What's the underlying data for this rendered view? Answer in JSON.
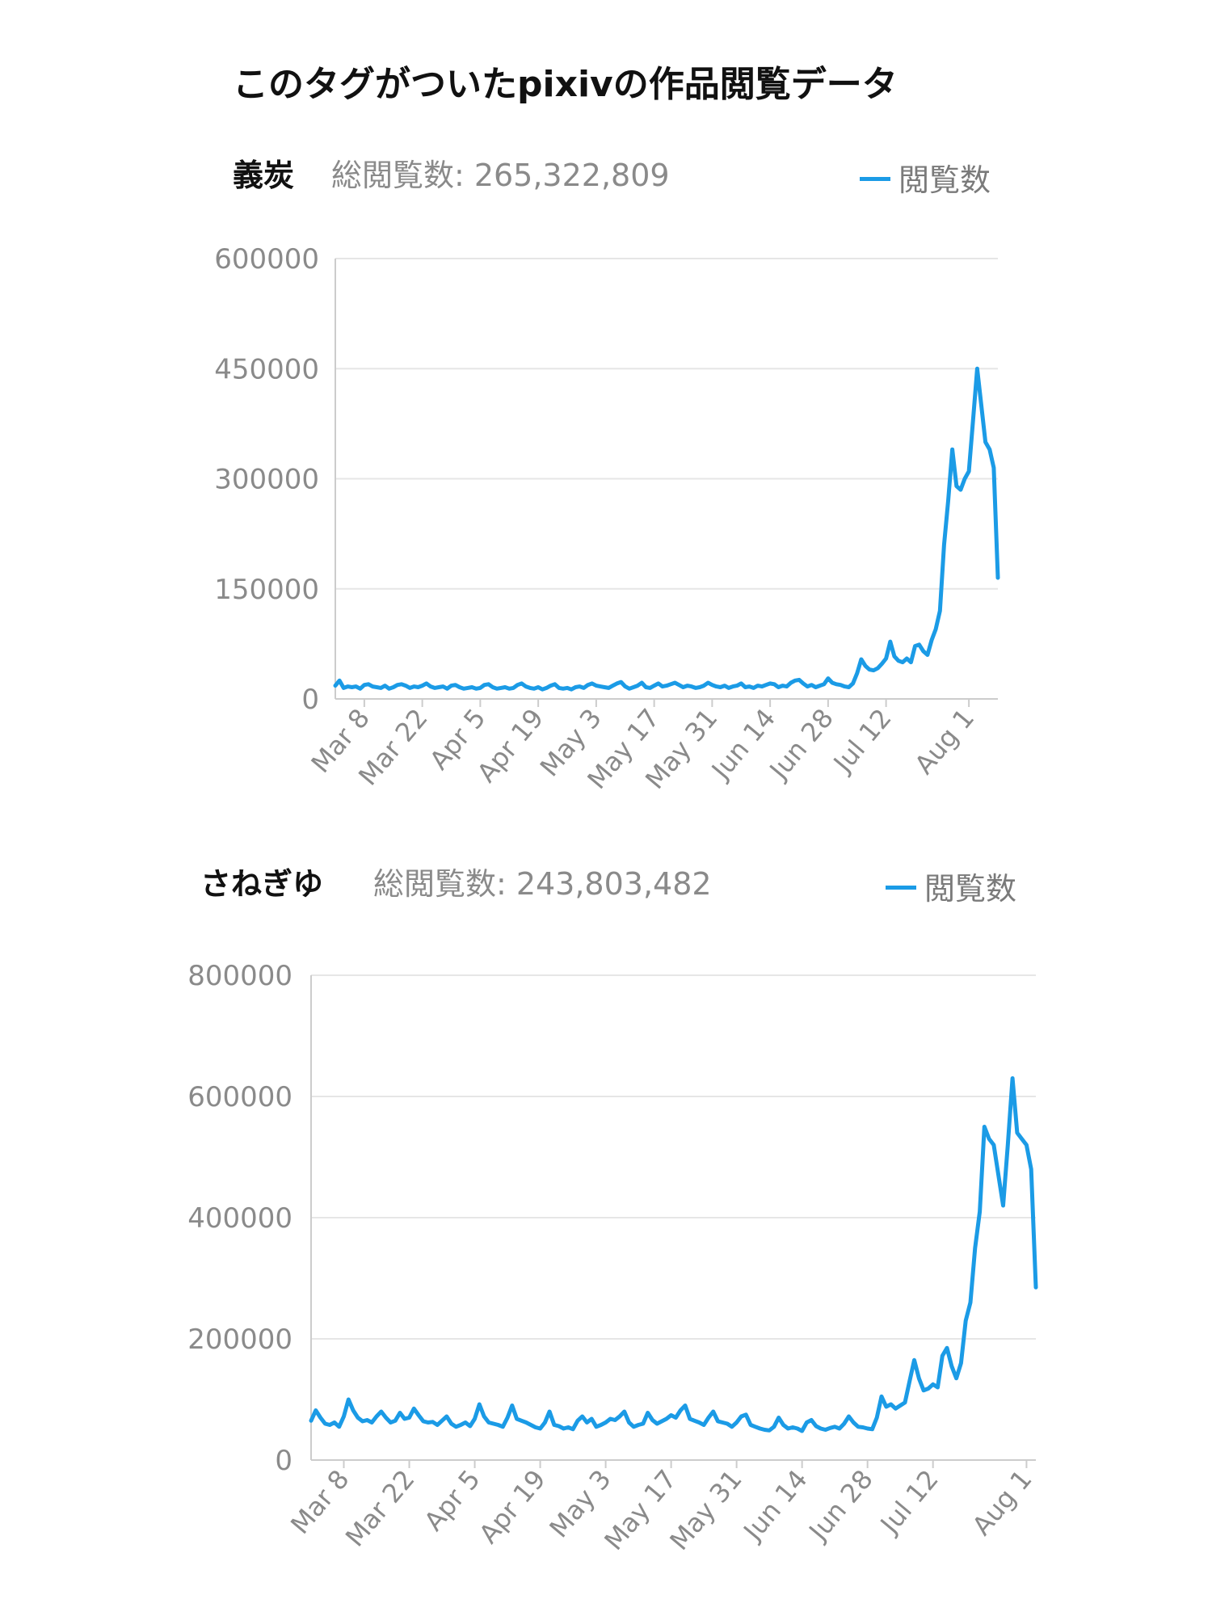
{
  "page_title": "このタグがついたpixivの作品閲覧データ",
  "colors": {
    "series": "#1b9be6",
    "grid": "#e6e6e6",
    "axis": "#cccccc",
    "text": "#8a8a8a"
  },
  "chart_data": [
    {
      "type": "line",
      "tag": "義炭",
      "total_label": "総閲覧数:",
      "total_value": "265,322,809",
      "legend_label": "閲覧数",
      "series_name": "閲覧数",
      "ylim": [
        0,
        600000
      ],
      "y_ticks": [
        "600000",
        "450000",
        "300000",
        "150000",
        "0"
      ],
      "y_tick_values": [
        600000,
        450000,
        300000,
        150000,
        0
      ],
      "x_ticks": [
        "Mar 8",
        "Mar 22",
        "Apr 5",
        "Apr 19",
        "May 3",
        "May 17",
        "May 31",
        "Jun 14",
        "Jun 28",
        "Jul 12",
        "Aug 1"
      ],
      "x_tick_index": [
        7,
        21,
        35,
        49,
        63,
        77,
        91,
        105,
        119,
        133,
        153
      ],
      "values": [
        18000,
        25000,
        15000,
        17000,
        16000,
        17000,
        14000,
        19000,
        20000,
        17000,
        16000,
        15000,
        18000,
        14000,
        16000,
        19000,
        20000,
        18000,
        15000,
        17000,
        16000,
        18000,
        21000,
        17000,
        15000,
        16000,
        17000,
        14000,
        18000,
        19000,
        16000,
        14000,
        15000,
        16000,
        14000,
        15000,
        19000,
        20000,
        16000,
        14000,
        15000,
        16000,
        14000,
        15000,
        19000,
        21000,
        17000,
        15000,
        14000,
        16000,
        13000,
        15000,
        18000,
        20000,
        15000,
        14000,
        15000,
        13000,
        16000,
        17000,
        15000,
        19000,
        21000,
        18000,
        17000,
        16000,
        15000,
        18000,
        21000,
        23000,
        17000,
        14000,
        16000,
        18000,
        22000,
        16000,
        15000,
        18000,
        21000,
        17000,
        18000,
        20000,
        22000,
        19000,
        16000,
        18000,
        17000,
        15000,
        16000,
        18000,
        22000,
        19000,
        17000,
        16000,
        18000,
        15000,
        17000,
        18000,
        21000,
        16000,
        17000,
        15000,
        18000,
        17000,
        19000,
        21000,
        20000,
        16000,
        18000,
        17000,
        22000,
        25000,
        26000,
        21000,
        17000,
        19000,
        16000,
        18000,
        20000,
        28000,
        22000,
        20000,
        19000,
        17000,
        16000,
        21000,
        35000,
        54000,
        45000,
        40000,
        39000,
        42000,
        48000,
        55000,
        78000,
        58000,
        52000,
        50000,
        55000,
        50000,
        72000,
        74000,
        65000,
        60000,
        80000,
        95000,
        120000,
        210000,
        270000,
        340000,
        290000,
        285000,
        300000,
        310000,
        380000,
        450000,
        400000,
        350000,
        340000,
        315000,
        165000
      ]
    },
    {
      "type": "line",
      "tag": "さねぎゆ",
      "total_label": "総閲覧数:",
      "total_value": "243,803,482",
      "legend_label": "閲覧数",
      "series_name": "閲覧数",
      "ylim": [
        0,
        800000
      ],
      "y_ticks": [
        "800000",
        "600000",
        "400000",
        "200000",
        "0"
      ],
      "y_tick_values": [
        800000,
        600000,
        400000,
        200000,
        0
      ],
      "x_ticks": [
        "Mar 8",
        "Mar 22",
        "Apr 5",
        "Apr 19",
        "May 3",
        "May 17",
        "May 31",
        "Jun 14",
        "Jun 28",
        "Jul 12",
        "Aug 1"
      ],
      "x_tick_index": [
        7,
        21,
        35,
        49,
        63,
        77,
        91,
        105,
        119,
        133,
        153
      ],
      "values": [
        65000,
        82000,
        70000,
        60000,
        58000,
        62000,
        55000,
        72000,
        100000,
        82000,
        70000,
        64000,
        66000,
        62000,
        72000,
        80000,
        70000,
        62000,
        65000,
        78000,
        68000,
        70000,
        85000,
        74000,
        64000,
        62000,
        63000,
        58000,
        65000,
        72000,
        60000,
        55000,
        58000,
        62000,
        56000,
        68000,
        92000,
        72000,
        62000,
        60000,
        58000,
        55000,
        70000,
        90000,
        68000,
        65000,
        62000,
        58000,
        54000,
        52000,
        62000,
        80000,
        58000,
        56000,
        52000,
        54000,
        51000,
        65000,
        72000,
        62000,
        68000,
        55000,
        58000,
        62000,
        68000,
        66000,
        72000,
        80000,
        62000,
        55000,
        58000,
        60000,
        78000,
        66000,
        60000,
        64000,
        68000,
        74000,
        70000,
        82000,
        90000,
        68000,
        65000,
        62000,
        58000,
        70000,
        80000,
        64000,
        62000,
        60000,
        55000,
        62000,
        72000,
        75000,
        58000,
        55000,
        52000,
        50000,
        49000,
        55000,
        70000,
        58000,
        52000,
        54000,
        52000,
        48000,
        62000,
        66000,
        56000,
        52000,
        50000,
        53000,
        55000,
        52000,
        60000,
        72000,
        62000,
        55000,
        54000,
        52000,
        51000,
        70000,
        105000,
        88000,
        92000,
        85000,
        90000,
        95000,
        130000,
        165000,
        135000,
        115000,
        118000,
        125000,
        120000,
        172000,
        185000,
        155000,
        135000,
        160000,
        230000,
        260000,
        350000,
        410000,
        550000,
        530000,
        520000,
        470000,
        420000,
        520000,
        630000,
        540000,
        530000,
        520000,
        480000,
        285000
      ]
    }
  ]
}
